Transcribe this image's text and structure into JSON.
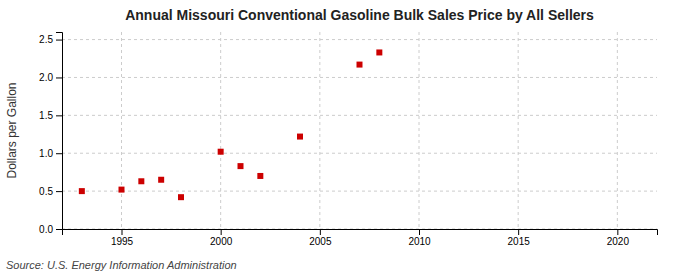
{
  "chart_data": {
    "type": "scatter",
    "title": "Annual Missouri Conventional Gasoline Bulk Sales Price by All Sellers",
    "ylabel": "Dollars per Gallon",
    "annotations": [
      "Source: U.S. Energy Information Administration"
    ],
    "x": [
      1993,
      1995,
      1996,
      1997,
      1998,
      2000,
      2001,
      2002,
      2004,
      2007,
      2008
    ],
    "values": [
      0.5,
      0.52,
      0.63,
      0.65,
      0.42,
      1.02,
      0.83,
      0.7,
      1.22,
      2.17,
      2.33
    ],
    "color": "#cc0000",
    "marker": "square",
    "xlim": [
      1992,
      2022
    ],
    "ylim": [
      0.0,
      2.6
    ],
    "xticks": [
      1995,
      2000,
      2005,
      2010,
      2015,
      2020
    ],
    "yticks": [
      {
        "value": 0.0,
        "label": "0.0"
      },
      0.5,
      {
        "value": 1.0,
        "label": "1.0"
      },
      1.5,
      {
        "value": 2.0,
        "label": "2.0"
      },
      2.5
    ],
    "grid": true
  }
}
